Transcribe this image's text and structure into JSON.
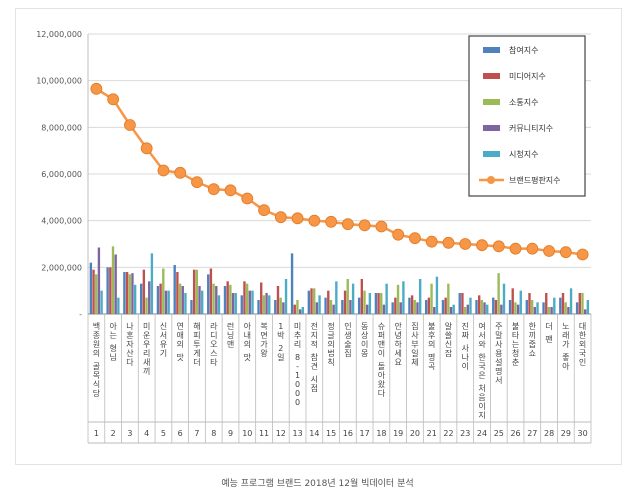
{
  "caption": "예능 프로그램 브랜드 2018년 12월 빅데이터 분석",
  "chart_data": {
    "type": "bar",
    "title": "",
    "xlabel": "",
    "ylabel": "",
    "ylim": [
      0,
      12000000
    ],
    "yticks": [
      0,
      2000000,
      4000000,
      6000000,
      8000000,
      10000000,
      12000000
    ],
    "ytick_labels": [
      "-",
      "2,000,000",
      "4,000,000",
      "6,000,000",
      "8,000,000",
      "10,000,000",
      "12,000,000"
    ],
    "grid": true,
    "legend_position": "top-right",
    "categories": [
      "백종원의 골목식당",
      "아는 형님",
      "나혼자산다",
      "미운우리새끼",
      "신서유기",
      "연애의 맛",
      "해피투게더",
      "라디오스타",
      "런닝맨",
      "아내의 맛",
      "복면가왕",
      "1박 2일",
      "미추리 8-1000",
      "전지적 참견 시점",
      "정글의법칙",
      "인생술집",
      "동상이몽",
      "슈퍼맨이 돌아왔다",
      "안녕하세요",
      "집사부일체",
      "불후의 명곡",
      "알쓸신잡",
      "진짜 사나이",
      "여서와 한국은 처음이지",
      "주말사용설명서",
      "불타는청춘",
      "한끼줍쇼",
      "더 팬",
      "노래가 좋아",
      "대한외국인"
    ],
    "ranks": [
      "1",
      "2",
      "3",
      "4",
      "5",
      "6",
      "7",
      "8",
      "9",
      "10",
      "11",
      "12",
      "13",
      "14",
      "15",
      "16",
      "17",
      "18",
      "19",
      "20",
      "21",
      "22",
      "23",
      "24",
      "25",
      "26",
      "27",
      "28",
      "29",
      "30"
    ],
    "series": [
      {
        "name": "참여지수",
        "type": "bar",
        "color": "#4f81bd",
        "values": [
          2200000,
          2000000,
          1800000,
          1300000,
          1200000,
          2100000,
          600000,
          1700000,
          1200000,
          800000,
          600000,
          600000,
          2600000,
          1000000,
          700000,
          600000,
          700000,
          900000,
          500000,
          700000,
          600000,
          600000,
          900000,
          600000,
          700000,
          600000,
          600000,
          500000,
          700000,
          500000
        ]
      },
      {
        "name": "미디어지수",
        "type": "bar",
        "color": "#c0504d",
        "values": [
          1900000,
          2000000,
          1800000,
          1900000,
          1300000,
          1800000,
          1900000,
          1950000,
          1400000,
          1400000,
          1350000,
          1200000,
          400000,
          1100000,
          1000000,
          1000000,
          1500000,
          900000,
          700000,
          800000,
          700000,
          700000,
          900000,
          800000,
          600000,
          1100000,
          900000,
          900000,
          900000,
          900000
        ]
      },
      {
        "name": "소통지수",
        "type": "bar",
        "color": "#9bbb59",
        "values": [
          1700000,
          2900000,
          1700000,
          700000,
          1950000,
          1300000,
          1900000,
          1300000,
          1250000,
          1300000,
          800000,
          700000,
          600000,
          1100000,
          600000,
          1500000,
          1000000,
          900000,
          1250000,
          600000,
          1300000,
          1300000,
          300000,
          600000,
          1750000,
          500000,
          600000,
          300000,
          500000,
          900000
        ]
      },
      {
        "name": "커뮤니티지수",
        "type": "bar",
        "color": "#8064a2",
        "values": [
          2850000,
          2550000,
          1750000,
          1400000,
          1000000,
          1200000,
          1200000,
          1200000,
          900000,
          1000000,
          900000,
          500000,
          200000,
          500000,
          400000,
          600000,
          400000,
          400000,
          500000,
          500000,
          300000,
          300000,
          400000,
          500000,
          400000,
          400000,
          300000,
          300000,
          300000,
          200000
        ]
      },
      {
        "name": "시청지수",
        "type": "bar",
        "color": "#4bacc6",
        "values": [
          1000000,
          700000,
          1250000,
          2600000,
          1000000,
          900000,
          1000000,
          800000,
          900000,
          1000000,
          800000,
          1500000,
          300000,
          800000,
          1400000,
          1300000,
          900000,
          1300000,
          1400000,
          1500000,
          1600000,
          400000,
          700000,
          400000,
          1300000,
          1000000,
          500000,
          700000,
          1100000,
          600000
        ]
      },
      {
        "name": "브랜드평판지수",
        "type": "line",
        "color": "#f79646",
        "values": [
          9650000,
          9200000,
          8100000,
          7100000,
          6150000,
          6050000,
          5650000,
          5350000,
          5300000,
          4950000,
          4450000,
          4150000,
          4100000,
          4000000,
          3950000,
          3850000,
          3800000,
          3750000,
          3400000,
          3250000,
          3100000,
          3050000,
          3000000,
          2950000,
          2900000,
          2800000,
          2800000,
          2700000,
          2650000,
          2550000
        ]
      }
    ]
  }
}
